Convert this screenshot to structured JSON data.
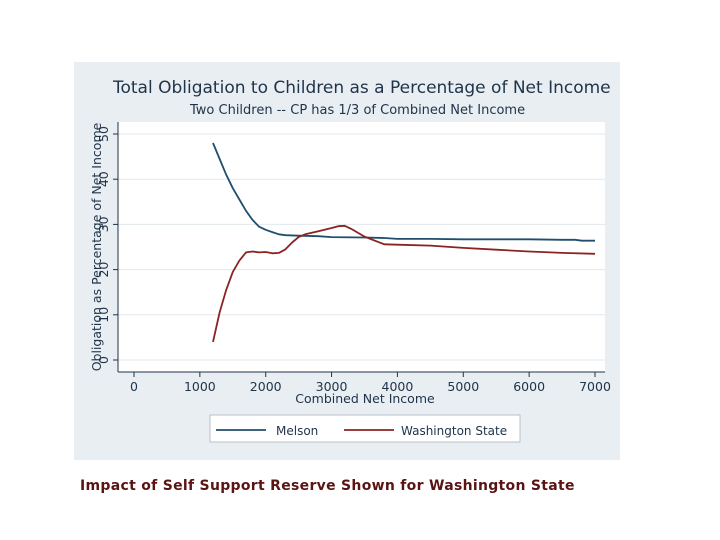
{
  "chart_data": {
    "type": "line",
    "title": "Total Obligation to Children as a Percentage of Net Income",
    "subtitle": "Two Children -- CP has 1/3 of Combined Net Income",
    "xlabel": "Combined Net Income",
    "ylabel": "Obligation as Percentage of Net Income",
    "xlim": [
      0,
      7000
    ],
    "ylim": [
      0,
      50
    ],
    "xticks": [
      0,
      1000,
      2000,
      3000,
      4000,
      5000,
      6000,
      7000
    ],
    "yticks": [
      0,
      10,
      20,
      30,
      40,
      50
    ],
    "grid": "horizontal",
    "legend_position": "bottom",
    "series": [
      {
        "name": "Melson",
        "color": "#1f4e6e",
        "x": [
          1200,
          1300,
          1400,
          1500,
          1600,
          1700,
          1800,
          1900,
          2000,
          2100,
          2200,
          2300,
          2500,
          2800,
          3000,
          3500,
          3800,
          4000,
          4500,
          5000,
          5500,
          6000,
          6500,
          6700,
          6800,
          7000
        ],
        "y": [
          48,
          44.5,
          41,
          38,
          35.5,
          33,
          31,
          29.5,
          28.8,
          28.3,
          27.8,
          27.6,
          27.5,
          27.4,
          27.2,
          27.1,
          27.0,
          26.8,
          26.8,
          26.7,
          26.7,
          26.7,
          26.6,
          26.6,
          26.4,
          26.4
        ]
      },
      {
        "name": "Washington State",
        "color": "#8b2323",
        "x": [
          1200,
          1300,
          1400,
          1500,
          1600,
          1700,
          1800,
          1900,
          2000,
          2100,
          2200,
          2300,
          2400,
          2500,
          2600,
          2800,
          3000,
          3100,
          3200,
          3300,
          3500,
          3800,
          4000,
          4500,
          5000,
          5500,
          6000,
          6500,
          7000
        ],
        "y": [
          4,
          10.5,
          15.5,
          19.5,
          22,
          23.8,
          24,
          23.8,
          23.9,
          23.6,
          23.7,
          24.5,
          26,
          27.2,
          27.8,
          28.5,
          29.2,
          29.6,
          29.7,
          29,
          27.3,
          25.6,
          25.5,
          25.3,
          24.8,
          24.4,
          24,
          23.7,
          23.5
        ]
      }
    ]
  },
  "caption": "Impact of Self Support Reserve Shown for Washington State"
}
